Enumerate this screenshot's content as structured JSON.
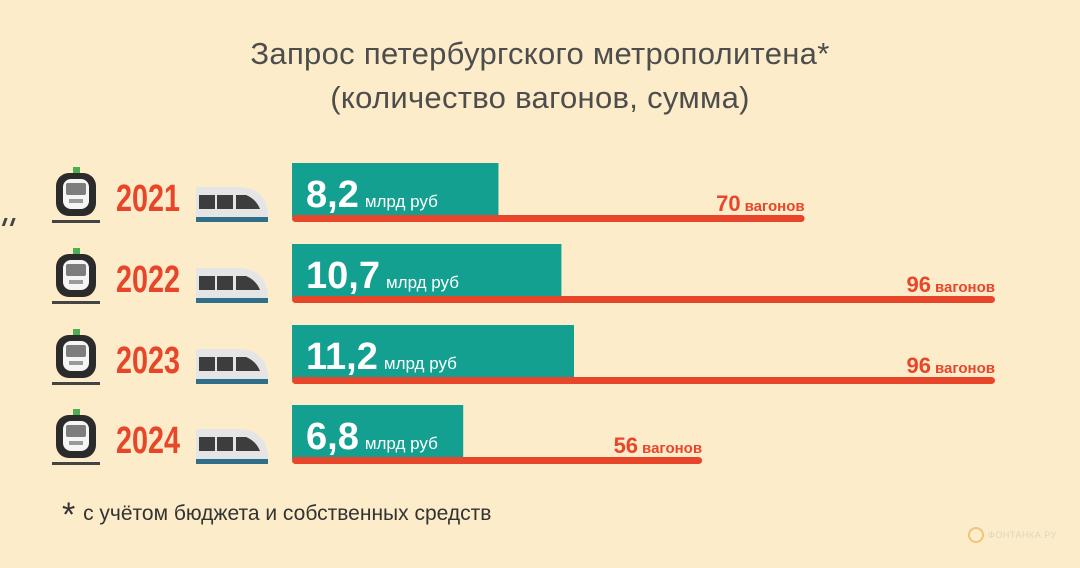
{
  "title": {
    "line1": "Запрос петербургского метрополитена*",
    "line2": "(количество вагонов, сумма)"
  },
  "footnote": {
    "star": "*",
    "text": "с учётом бюджета и собственных средств"
  },
  "logo": {
    "text": "ФОНТАНКА.РУ"
  },
  "colors": {
    "background": "#fcecc9",
    "amount_bar": "#13a090",
    "wagons_bar": "#e8462a",
    "year_text": "#e8462a",
    "title_text": "#4d4d4d"
  },
  "icons": [
    "metro-train-front-icon",
    "railway-car-side-icon"
  ],
  "chart_data": {
    "type": "bar",
    "title": "Запрос петербургского метрополитена*",
    "subtitle": "(количество вагонов, сумма)",
    "categories": [
      "2021",
      "2022",
      "2023",
      "2024"
    ],
    "series": [
      {
        "name": "",
        "unit": "млрд руб",
        "values": [
          8.2,
          10.7,
          11.2,
          6.8
        ],
        "labels": [
          "8,2",
          "10,7",
          "11,2",
          "6,8"
        ]
      },
      {
        "name": "",
        "unit": "вагонов",
        "values": [
          70,
          96,
          96,
          56
        ],
        "labels": [
          "70",
          "96",
          "96",
          "56"
        ]
      }
    ]
  }
}
